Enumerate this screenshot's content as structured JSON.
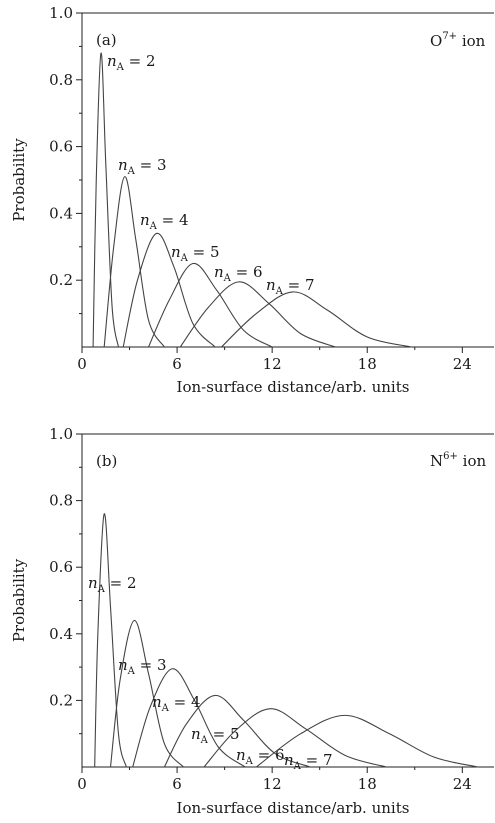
{
  "chart_data": [
    {
      "type": "line",
      "panel_label": "(a)",
      "ion_label_base": "O",
      "ion_label_sup": "7+",
      "ion_label_suffix": " ion",
      "xlabel": "Ion-surface distance/arb. units",
      "ylabel": "Probability",
      "xlim": [
        0,
        26
      ],
      "ylim": [
        0,
        1.0
      ],
      "xticks": [
        "0",
        "6",
        "12",
        "18",
        "24"
      ],
      "yticks": [
        "0.2",
        "0.4",
        "0.6",
        "0.8",
        "1.0"
      ],
      "grid": false,
      "series": [
        {
          "name": "n_A = 2",
          "label_var": "n",
          "label_sub": "A",
          "label_eq": " = 2",
          "x": [
            0.7,
            0.9,
            1.2,
            1.5,
            1.9,
            2.3
          ],
          "y": [
            0.0,
            0.5,
            0.88,
            0.55,
            0.12,
            0.0
          ]
        },
        {
          "name": "n_A = 3",
          "label_var": "n",
          "label_sub": "A",
          "label_eq": " = 3",
          "x": [
            1.4,
            2.0,
            2.7,
            3.4,
            4.2,
            5.2
          ],
          "y": [
            0.0,
            0.3,
            0.51,
            0.32,
            0.08,
            0.0
          ]
        },
        {
          "name": "n_A = 4",
          "label_var": "n",
          "label_sub": "A",
          "label_eq": " = 4",
          "x": [
            2.6,
            3.5,
            4.7,
            5.8,
            7.0,
            8.4
          ],
          "y": [
            0.0,
            0.2,
            0.34,
            0.24,
            0.07,
            0.0
          ]
        },
        {
          "name": "n_A = 5",
          "label_var": "n",
          "label_sub": "A",
          "label_eq": " = 5",
          "x": [
            4.2,
            5.5,
            7.0,
            8.5,
            10.2,
            12.0
          ],
          "y": [
            0.0,
            0.14,
            0.25,
            0.17,
            0.05,
            0.0
          ]
        },
        {
          "name": "n_A = 6",
          "label_var": "n",
          "label_sub": "A",
          "label_eq": " = 6",
          "x": [
            6.2,
            8.0,
            9.9,
            11.8,
            13.8,
            16.0
          ],
          "y": [
            0.0,
            0.12,
            0.195,
            0.13,
            0.04,
            0.0
          ]
        },
        {
          "name": "n_A = 7",
          "label_var": "n",
          "label_sub": "A",
          "label_eq": " = 7",
          "x": [
            8.8,
            11.0,
            13.3,
            15.5,
            18.0,
            20.8
          ],
          "y": [
            0.0,
            0.1,
            0.165,
            0.11,
            0.03,
            0.0
          ]
        }
      ]
    },
    {
      "type": "line",
      "panel_label": "(b)",
      "ion_label_base": "N",
      "ion_label_sup": "6+",
      "ion_label_suffix": " ion",
      "xlabel": "Ion-surface distance/arb. units",
      "ylabel": "Probability",
      "xlim": [
        0,
        26
      ],
      "ylim": [
        0,
        1.0
      ],
      "xticks": [
        "0",
        "6",
        "12",
        "18",
        "24"
      ],
      "yticks": [
        "0.2",
        "0.4",
        "0.6",
        "0.8",
        "1.0"
      ],
      "grid": false,
      "series": [
        {
          "name": "n_A = 2",
          "label_var": "n",
          "label_sub": "A",
          "label_eq": " = 2",
          "x": [
            0.8,
            1.0,
            1.4,
            1.8,
            2.3,
            2.8
          ],
          "y": [
            0.0,
            0.4,
            0.76,
            0.48,
            0.1,
            0.0
          ]
        },
        {
          "name": "n_A = 3",
          "label_var": "n",
          "label_sub": "A",
          "label_eq": " = 3",
          "x": [
            1.8,
            2.4,
            3.3,
            4.2,
            5.2,
            6.4
          ],
          "y": [
            0.0,
            0.26,
            0.44,
            0.28,
            0.07,
            0.0
          ]
        },
        {
          "name": "n_A = 4",
          "label_var": "n",
          "label_sub": "A",
          "label_eq": " = 4",
          "x": [
            3.2,
            4.3,
            5.7,
            7.1,
            8.6,
            10.3
          ],
          "y": [
            0.0,
            0.18,
            0.295,
            0.2,
            0.06,
            0.0
          ]
        },
        {
          "name": "n_A = 5",
          "label_var": "n",
          "label_sub": "A",
          "label_eq": " = 5",
          "x": [
            5.2,
            6.6,
            8.4,
            10.2,
            12.2,
            14.4
          ],
          "y": [
            0.0,
            0.13,
            0.215,
            0.14,
            0.04,
            0.0
          ]
        },
        {
          "name": "n_A = 6",
          "label_var": "n",
          "label_sub": "A",
          "label_eq": " = 6",
          "x": [
            7.7,
            9.7,
            11.9,
            14.1,
            16.6,
            19.2
          ],
          "y": [
            0.0,
            0.11,
            0.175,
            0.115,
            0.035,
            0.0
          ]
        },
        {
          "name": "n_A = 7",
          "label_var": "n",
          "label_sub": "A",
          "label_eq": " = 7",
          "x": [
            11.0,
            13.8,
            16.6,
            19.4,
            22.2,
            25.0
          ],
          "y": [
            0.0,
            0.1,
            0.155,
            0.1,
            0.03,
            0.0
          ]
        }
      ]
    }
  ]
}
